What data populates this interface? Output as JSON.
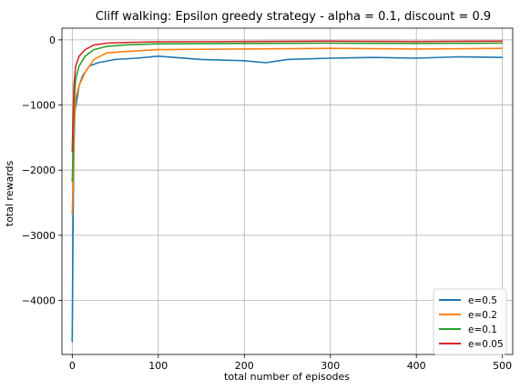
{
  "chart_data": {
    "type": "line",
    "title": "Cliff walking: Epsilon greedy strategy - alpha = 0.1, discount = 0.9",
    "xlabel": "total number of episodes",
    "ylabel": "total rewards",
    "xlim": [
      -12,
      512
    ],
    "ylim": [
      -4830,
      180
    ],
    "xticks": [
      0,
      100,
      200,
      300,
      400,
      500
    ],
    "yticks": [
      0,
      -1000,
      -2000,
      -3000,
      -4000
    ],
    "xtick_labels": [
      "0",
      "100",
      "200",
      "300",
      "400",
      "500"
    ],
    "ytick_labels": [
      "0",
      "−1000",
      "−2000",
      "−3000",
      "−4000"
    ],
    "grid": true,
    "legend_position": "lower-right",
    "series": [
      {
        "name": "e=0.5",
        "color": "#1f77b4",
        "x": [
          0,
          1,
          2,
          3,
          5,
          8,
          12,
          20,
          30,
          50,
          75,
          100,
          150,
          200,
          225,
          250,
          300,
          350,
          400,
          450,
          500
        ],
        "values": [
          -4640,
          -2700,
          -1600,
          -1100,
          -950,
          -700,
          -550,
          -400,
          -350,
          -300,
          -280,
          -250,
          -300,
          -320,
          -350,
          -300,
          -280,
          -270,
          -280,
          -260,
          -270
        ]
      },
      {
        "name": "e=0.2",
        "color": "#ff7f0e",
        "x": [
          0,
          1,
          2,
          4,
          8,
          15,
          25,
          40,
          60,
          100,
          200,
          300,
          400,
          500
        ],
        "values": [
          -2680,
          -2200,
          -1400,
          -900,
          -700,
          -500,
          -300,
          -200,
          -180,
          -150,
          -140,
          -130,
          -140,
          -130
        ]
      },
      {
        "name": "e=0.1",
        "color": "#2ca02c",
        "x": [
          0,
          1,
          2,
          4,
          8,
          15,
          25,
          40,
          60,
          100,
          200,
          300,
          400,
          500
        ],
        "values": [
          -2180,
          -1700,
          -1000,
          -600,
          -400,
          -250,
          -150,
          -100,
          -80,
          -60,
          -55,
          -50,
          -55,
          -50
        ]
      },
      {
        "name": "e=0.05",
        "color": "#d62728",
        "x": [
          0,
          1,
          2,
          4,
          8,
          15,
          25,
          40,
          60,
          100,
          200,
          300,
          400,
          500
        ],
        "values": [
          -1720,
          -1200,
          -700,
          -400,
          -250,
          -150,
          -80,
          -50,
          -40,
          -30,
          -25,
          -20,
          -25,
          -20
        ]
      }
    ]
  }
}
